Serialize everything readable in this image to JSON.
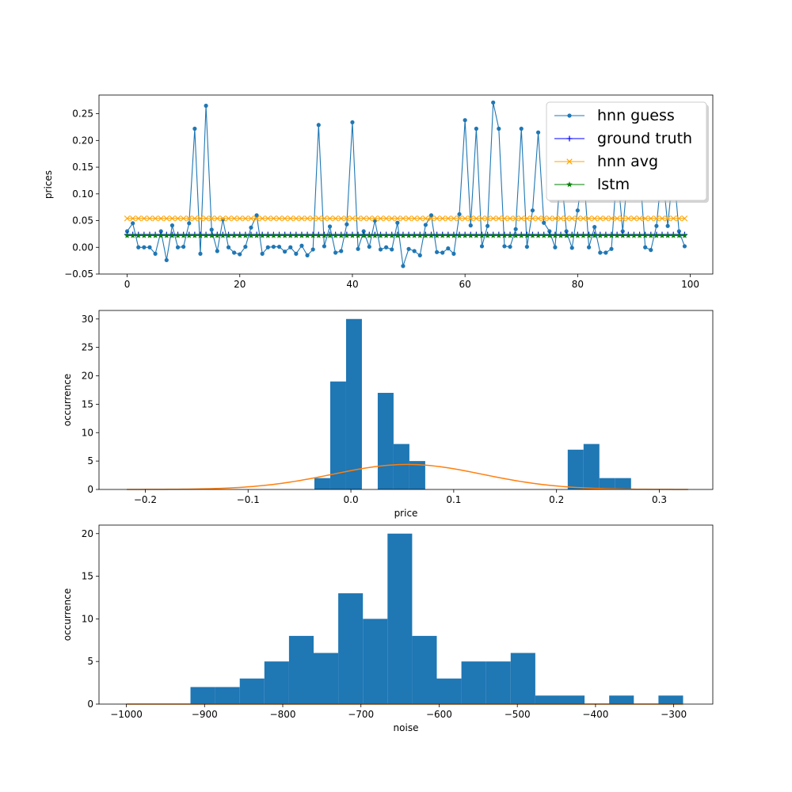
{
  "chart_data": [
    {
      "type": "line",
      "title": "",
      "xlabel": "",
      "ylabel": "prices",
      "xlim": [
        -5,
        104
      ],
      "ylim": [
        -0.05,
        0.285
      ],
      "xticks": [
        0,
        20,
        40,
        60,
        80,
        100
      ],
      "yticks": [
        -0.05,
        0.0,
        0.05,
        0.1,
        0.15,
        0.2,
        0.25
      ],
      "xtick_labels": [
        "0",
        "20",
        "40",
        "60",
        "80",
        "100"
      ],
      "ytick_labels": [
        "−0.05",
        "0.00",
        "0.05",
        "0.10",
        "0.15",
        "0.20",
        "0.25"
      ],
      "legend_position": "top-right",
      "x": [
        0,
        1,
        2,
        3,
        4,
        5,
        6,
        7,
        8,
        9,
        10,
        11,
        12,
        13,
        14,
        15,
        16,
        17,
        18,
        19,
        20,
        21,
        22,
        23,
        24,
        25,
        26,
        27,
        28,
        29,
        30,
        31,
        32,
        33,
        34,
        35,
        36,
        37,
        38,
        39,
        40,
        41,
        42,
        43,
        44,
        45,
        46,
        47,
        48,
        49,
        50,
        51,
        52,
        53,
        54,
        55,
        56,
        57,
        58,
        59,
        60,
        61,
        62,
        63,
        64,
        65,
        66,
        67,
        68,
        69,
        70,
        71,
        72,
        73,
        74,
        75,
        76,
        77,
        78,
        79,
        80,
        81,
        82,
        83,
        84,
        85,
        86,
        87,
        88,
        89,
        90,
        91,
        92,
        93,
        94,
        95,
        96,
        97,
        98,
        99
      ],
      "series": [
        {
          "name": "hnn guess",
          "color": "#1f77b4",
          "marker": "dot",
          "values": [
            0.03,
            0.045,
            0.0,
            0.0,
            0.0,
            -0.012,
            0.03,
            -0.024,
            0.041,
            0.0,
            0.001,
            0.045,
            0.222,
            -0.012,
            0.265,
            0.033,
            -0.007,
            0.052,
            0.0,
            -0.01,
            -0.013,
            0.001,
            0.037,
            0.06,
            -0.012,
            0.0,
            0.001,
            0.001,
            -0.008,
            0.0,
            -0.012,
            0.003,
            -0.015,
            -0.004,
            0.229,
            0.002,
            0.039,
            -0.01,
            -0.007,
            0.043,
            0.234,
            -0.003,
            0.03,
            0.001,
            0.05,
            -0.004,
            0.0,
            -0.004,
            0.046,
            -0.035,
            -0.003,
            -0.007,
            -0.015,
            0.042,
            0.06,
            -0.009,
            -0.01,
            -0.002,
            -0.012,
            0.062,
            0.238,
            0.041,
            0.222,
            0.002,
            0.04,
            0.271,
            0.222,
            0.002,
            0.001,
            0.034,
            0.222,
            0.001,
            0.069,
            0.215,
            0.046,
            0.03,
            0.0,
            0.15,
            0.03,
            -0.001,
            0.069,
            0.15,
            0.0,
            0.038,
            -0.01,
            -0.01,
            -0.003,
            0.15,
            0.03,
            0.15,
            0.15,
            0.15,
            0.0,
            -0.005,
            0.04,
            0.15,
            0.04,
            0.15,
            0.03,
            0.002
          ]
        },
        {
          "name": "ground truth",
          "color": "#0000ff",
          "marker": "plus",
          "values": [
            0.024,
            0.024,
            0.024,
            0.024,
            0.024,
            0.024,
            0.024,
            0.024,
            0.024,
            0.024,
            0.024,
            0.024,
            0.024,
            0.024,
            0.024,
            0.024,
            0.024,
            0.024,
            0.024,
            0.024,
            0.024,
            0.024,
            0.024,
            0.024,
            0.024,
            0.024,
            0.024,
            0.024,
            0.024,
            0.024,
            0.024,
            0.024,
            0.024,
            0.024,
            0.024,
            0.024,
            0.024,
            0.024,
            0.024,
            0.024,
            0.024,
            0.024,
            0.024,
            0.024,
            0.024,
            0.024,
            0.024,
            0.024,
            0.024,
            0.024,
            0.024,
            0.024,
            0.024,
            0.024,
            0.024,
            0.024,
            0.024,
            0.024,
            0.024,
            0.024,
            0.024,
            0.024,
            0.024,
            0.024,
            0.024,
            0.024,
            0.024,
            0.024,
            0.024,
            0.024,
            0.024,
            0.024,
            0.024,
            0.024,
            0.024,
            0.024,
            0.024,
            0.024,
            0.024,
            0.024,
            0.024,
            0.024,
            0.024,
            0.024,
            0.024,
            0.024,
            0.024,
            0.024,
            0.024,
            0.024,
            0.024,
            0.024,
            0.024,
            0.024,
            0.024,
            0.024,
            0.024,
            0.024,
            0.024,
            0.024
          ]
        },
        {
          "name": "hnn avg",
          "color": "#ffa500",
          "marker": "x",
          "values": [
            0.054,
            0.054,
            0.054,
            0.054,
            0.054,
            0.054,
            0.054,
            0.054,
            0.054,
            0.054,
            0.054,
            0.054,
            0.054,
            0.054,
            0.054,
            0.054,
            0.054,
            0.054,
            0.054,
            0.054,
            0.054,
            0.054,
            0.054,
            0.054,
            0.054,
            0.054,
            0.054,
            0.054,
            0.054,
            0.054,
            0.054,
            0.054,
            0.054,
            0.054,
            0.054,
            0.054,
            0.054,
            0.054,
            0.054,
            0.054,
            0.054,
            0.054,
            0.054,
            0.054,
            0.054,
            0.054,
            0.054,
            0.054,
            0.054,
            0.054,
            0.054,
            0.054,
            0.054,
            0.054,
            0.054,
            0.054,
            0.054,
            0.054,
            0.054,
            0.054,
            0.054,
            0.054,
            0.054,
            0.054,
            0.054,
            0.054,
            0.054,
            0.054,
            0.054,
            0.054,
            0.054,
            0.054,
            0.054,
            0.054,
            0.054,
            0.054,
            0.054,
            0.054,
            0.054,
            0.054,
            0.054,
            0.054,
            0.054,
            0.054,
            0.054,
            0.054,
            0.054,
            0.054,
            0.054,
            0.054,
            0.054,
            0.054,
            0.054,
            0.054,
            0.054,
            0.054,
            0.054,
            0.054,
            0.054,
            0.054
          ]
        },
        {
          "name": "lstm",
          "color": "#008000",
          "marker": "star",
          "values": [
            0.022,
            0.022,
            0.022,
            0.022,
            0.022,
            0.022,
            0.022,
            0.022,
            0.022,
            0.022,
            0.022,
            0.022,
            0.022,
            0.022,
            0.022,
            0.022,
            0.022,
            0.022,
            0.022,
            0.022,
            0.022,
            0.022,
            0.022,
            0.022,
            0.022,
            0.022,
            0.022,
            0.022,
            0.022,
            0.022,
            0.022,
            0.022,
            0.022,
            0.022,
            0.022,
            0.022,
            0.022,
            0.022,
            0.022,
            0.022,
            0.022,
            0.022,
            0.022,
            0.022,
            0.022,
            0.022,
            0.022,
            0.022,
            0.022,
            0.022,
            0.022,
            0.022,
            0.022,
            0.022,
            0.022,
            0.022,
            0.022,
            0.022,
            0.022,
            0.022,
            0.022,
            0.022,
            0.022,
            0.022,
            0.022,
            0.022,
            0.022,
            0.022,
            0.022,
            0.022,
            0.022,
            0.022,
            0.022,
            0.022,
            0.022,
            0.022,
            0.022,
            0.022,
            0.022,
            0.022,
            0.022,
            0.022,
            0.022,
            0.022,
            0.022,
            0.022,
            0.022,
            0.022,
            0.022,
            0.022,
            0.022,
            0.022,
            0.022,
            0.022,
            0.022,
            0.022,
            0.022,
            0.022,
            0.022,
            0.022
          ]
        }
      ]
    },
    {
      "type": "bar",
      "title": "",
      "xlabel": "price",
      "ylabel": "occurrence",
      "xlim": [
        -0.245,
        0.352
      ],
      "ylim": [
        0,
        31.5
      ],
      "xticks": [
        -0.2,
        -0.1,
        0.0,
        0.1,
        0.2,
        0.3
      ],
      "yticks": [
        0,
        5,
        10,
        15,
        20,
        25,
        30
      ],
      "xtick_labels": [
        "−0.2",
        "−0.1",
        "0.0",
        "0.1",
        "0.2",
        "0.3"
      ],
      "ytick_labels": [
        "0",
        "5",
        "10",
        "15",
        "20",
        "25",
        "30"
      ],
      "bin_edges": [
        -0.0355,
        -0.0201,
        -0.0047,
        0.0107,
        0.0261,
        0.0415,
        0.0569,
        0.0723,
        0.0877,
        0.1031,
        0.1185,
        0.1339,
        0.1493,
        0.1647,
        0.1801,
        0.1955,
        0.2109,
        0.2263,
        0.2417,
        0.2571,
        0.2725
      ],
      "values": [
        2,
        19,
        30,
        0,
        17,
        8,
        5,
        0,
        0,
        0,
        0,
        0,
        0,
        0,
        0,
        0,
        7,
        8,
        2,
        2
      ],
      "bar_color": "#1f77b4",
      "curve": {
        "type": "gaussian",
        "color": "#ff7f0e",
        "mean": 0.055,
        "peak": 4.4,
        "sigma": 0.073,
        "x_range": [
          -0.218,
          0.328
        ]
      }
    },
    {
      "type": "bar",
      "title": "",
      "xlabel": "noise",
      "ylabel": "occurrence",
      "xlim": [
        -1035,
        -250
      ],
      "ylim": [
        0,
        21
      ],
      "xticks": [
        -1000,
        -900,
        -800,
        -700,
        -600,
        -500,
        -400,
        -300
      ],
      "yticks": [
        0,
        5,
        10,
        15,
        20
      ],
      "xtick_labels": [
        "−1000",
        "−900",
        "−800",
        "−700",
        "−600",
        "−500",
        "−400",
        "−300"
      ],
      "ytick_labels": [
        "0",
        "5",
        "10",
        "15",
        "20"
      ],
      "bin_edges": [
        -918,
        -886.5,
        -855,
        -823.5,
        -792,
        -760.5,
        -729,
        -697.5,
        -666,
        -634.5,
        -603,
        -571.5,
        -540,
        -508.5,
        -477,
        -445.5,
        -414,
        -382.5,
        -351,
        -319.5,
        -288
      ],
      "values": [
        2,
        2,
        3,
        5,
        8,
        6,
        13,
        10,
        20,
        8,
        3,
        5,
        5,
        6,
        1,
        1,
        0,
        1,
        0,
        1
      ],
      "bar_color": "#1f77b4",
      "curve": {
        "type": "flat",
        "color": "#ff7f0e",
        "x_range": [
          -1000,
          -288
        ],
        "value": 0
      }
    }
  ]
}
